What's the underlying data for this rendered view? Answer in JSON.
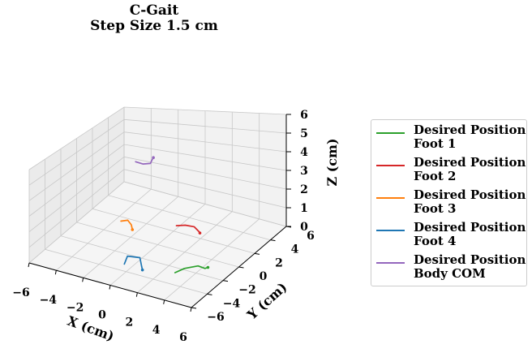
{
  "chart_data": {
    "type": "line",
    "title": "C-Gait",
    "subtitle": "Step Size 1.5 cm",
    "xlabel": "X (cm)",
    "ylabel": "Y (cm)",
    "zlabel": "Z (cm)",
    "xlim": [
      -6,
      6
    ],
    "ylim": [
      -6,
      6
    ],
    "zlim": [
      0,
      6
    ],
    "x_ticks": [
      "−6",
      "−4",
      "−2",
      "0",
      "2",
      "4",
      "6"
    ],
    "y_ticks": [
      "−6",
      "−4",
      "−2",
      "0",
      "2",
      "4",
      "6"
    ],
    "z_ticks": [
      "0",
      "1",
      "2",
      "3",
      "4",
      "5",
      "6"
    ],
    "grid": true,
    "legend_placement": "right",
    "series": [
      {
        "name": "Desired Position\nFoot 1",
        "color": "#2ca02c",
        "points": [
          [
            2.8,
            -2.6,
            0.0
          ],
          [
            3.2,
            -2.1,
            0.12
          ],
          [
            3.8,
            -1.4,
            0.12
          ],
          [
            4.2,
            -1.2,
            0.0
          ],
          [
            4.3,
            -1.0,
            0.0
          ]
        ]
      },
      {
        "name": "Desired Position\nFoot 2",
        "color": "#d62728",
        "points": [
          [
            -0.2,
            2.7,
            0.0
          ],
          [
            0.4,
            2.8,
            0.12
          ],
          [
            1.0,
            2.9,
            0.12
          ],
          [
            1.5,
            2.7,
            0.0
          ],
          [
            1.6,
            2.6,
            0.0
          ]
        ]
      },
      {
        "name": "Desired Position\nFoot 3",
        "color": "#ff7f0e",
        "points": [
          [
            -3.6,
            1.5,
            0.0
          ],
          [
            -3.1,
            1.5,
            0.18
          ],
          [
            -2.6,
            1.1,
            0.18
          ],
          [
            -2.4,
            0.9,
            0.0
          ]
        ]
      },
      {
        "name": "Desired Position\nFoot 4",
        "color": "#1f77b4",
        "points": [
          [
            -0.6,
            -3.2,
            0.0
          ],
          [
            -0.6,
            -2.8,
            0.3
          ],
          [
            0.2,
            -2.6,
            0.3
          ],
          [
            0.5,
            -2.9,
            0.0
          ],
          [
            0.8,
            -3.3,
            0.0
          ]
        ]
      },
      {
        "name": "Desired Position\nBody COM",
        "color": "#9467bd",
        "points": [
          [
            -2.4,
            1.3,
            4.2
          ],
          [
            -1.8,
            1.2,
            4.15
          ],
          [
            -1.3,
            1.3,
            4.2
          ],
          [
            -1.3,
            1.5,
            4.35
          ],
          [
            -1.2,
            1.5,
            4.5
          ]
        ]
      }
    ]
  }
}
